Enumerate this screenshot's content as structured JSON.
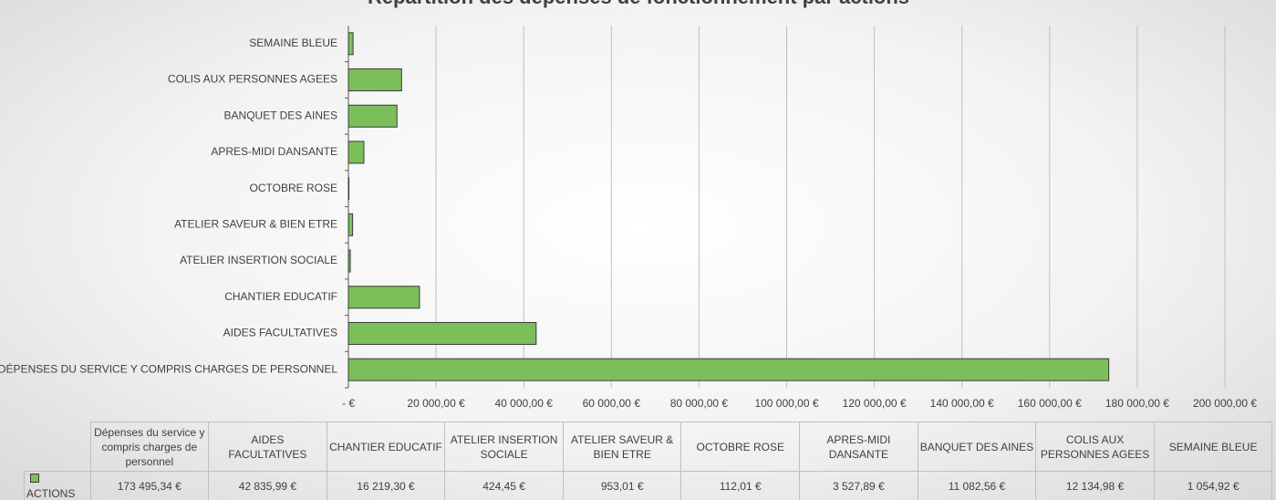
{
  "chart_data": {
    "type": "bar",
    "orientation": "horizontal",
    "title": "Répartition des dépenses de fonctionnement par actions",
    "categories": [
      "DÉPENSES DU SERVICE Y COMPRIS CHARGES DE PERSONNEL",
      "AIDES FACULTATIVES",
      "CHANTIER EDUCATIF",
      "ATELIER INSERTION SOCIALE",
      "ATELIER SAVEUR & BIEN ETRE",
      "OCTOBRE ROSE",
      "APRES-MIDI DANSANTE",
      "BANQUET DES AINES",
      "COLIS AUX PERSONNES AGEES",
      "SEMAINE BLEUE"
    ],
    "table_headers": [
      "Dépenses du service y compris charges de personnel",
      "AIDES FACULTATIVES",
      "CHANTIER EDUCATIF",
      "ATELIER INSERTION SOCIALE",
      "ATELIER SAVEUR & BIEN ETRE",
      "OCTOBRE ROSE",
      "APRES-MIDI DANSANTE",
      "BANQUET DES AINES",
      "COLIS AUX PERSONNES AGEES",
      "SEMAINE BLEUE"
    ],
    "series": [
      {
        "name": "ACTIONS",
        "color": "#7cbf5a",
        "values": [
          173495.34,
          42835.99,
          16219.3,
          424.45,
          953.01,
          112.01,
          3527.89,
          11082.56,
          12134.98,
          1054.92
        ],
        "value_labels": [
          "173 495,34 €",
          "42 835,99 €",
          "16 219,30 €",
          "424,45 €",
          "953,01 €",
          "112,01 €",
          "3 527,89 €",
          "11 082,56 €",
          "12 134,98 €",
          "1 054,92 €"
        ]
      }
    ],
    "xlim": [
      0,
      200000
    ],
    "xticks": [
      {
        "value": 0,
        "label": "-  €"
      },
      {
        "value": 20000,
        "label": "20 000,00 €"
      },
      {
        "value": 40000,
        "label": "40 000,00 €"
      },
      {
        "value": 60000,
        "label": "60 000,00 €"
      },
      {
        "value": 80000,
        "label": "80 000,00 €"
      },
      {
        "value": 100000,
        "label": "100 000,00 €"
      },
      {
        "value": 120000,
        "label": "120 000,00 €"
      },
      {
        "value": 140000,
        "label": "140 000,00 €"
      },
      {
        "value": 160000,
        "label": "160 000,00 €"
      },
      {
        "value": 180000,
        "label": "180 000,00 €"
      },
      {
        "value": 200000,
        "label": "200 000,00 €"
      }
    ],
    "grid": true
  }
}
